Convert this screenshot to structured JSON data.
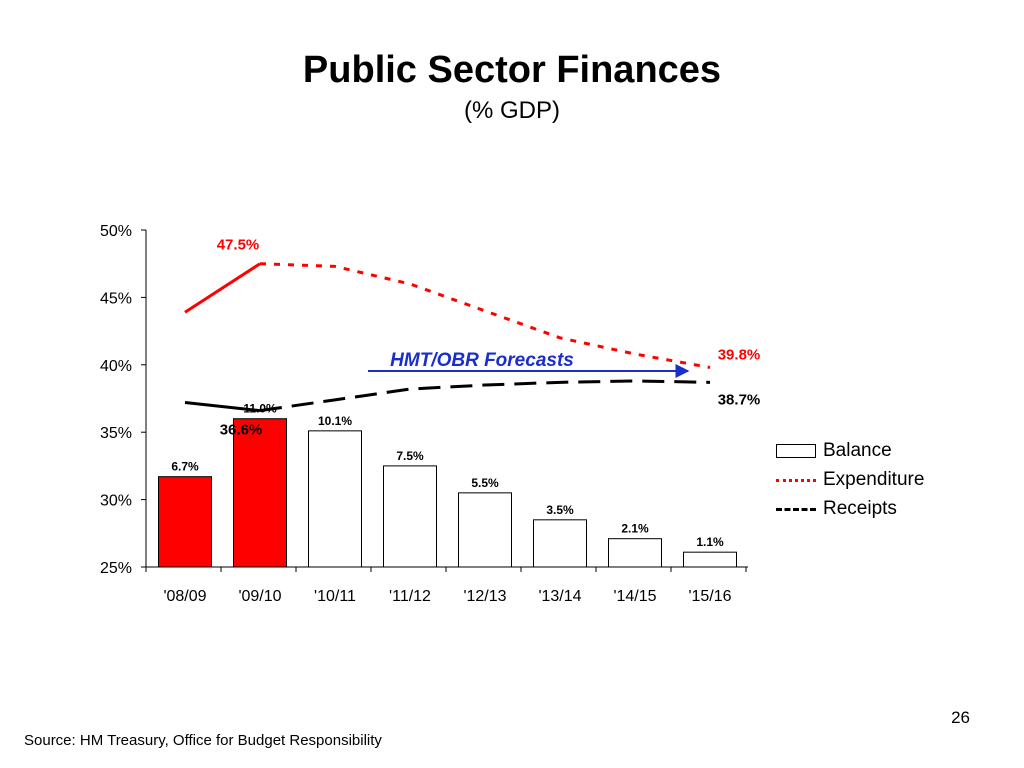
{
  "slide": {
    "title": "Public Sector Finances",
    "subtitle": "(% GDP)",
    "page_number": "26",
    "source": "Source: HM Treasury, Office for Budget Responsibility"
  },
  "chart_data": {
    "type": "bar",
    "title": "Public Sector Finances",
    "subtitle": "(% GDP)",
    "categories": [
      "'08/09",
      "'09/10",
      "'10/11",
      "'11/12",
      "'12/13",
      "'13/14",
      "'14/15",
      "'15/16"
    ],
    "y_ticks": [
      "25%",
      "30%",
      "35%",
      "40%",
      "45%",
      "50%"
    ],
    "ylim": [
      25,
      50
    ],
    "grid": false,
    "legend_position": "right",
    "series": [
      {
        "name": "Balance",
        "kind": "bar",
        "values": [
          6.7,
          11.0,
          10.1,
          7.5,
          5.5,
          3.5,
          2.1,
          1.1
        ],
        "labels": [
          "6.7%",
          "11.0%",
          "10.1%",
          "7.5%",
          "5.5%",
          "3.5%",
          "2.1%",
          "1.1%"
        ],
        "colors": [
          "#ff0000",
          "#ff0000",
          "#ffffff",
          "#ffffff",
          "#ffffff",
          "#ffffff",
          "#ffffff",
          "#ffffff"
        ]
      },
      {
        "name": "Expenditure",
        "kind": "line",
        "style_actual": "solid",
        "style_forecast": "dotted",
        "color": "#ff0000",
        "values": [
          43.9,
          47.5,
          47.3,
          46.0,
          44.0,
          42.0,
          40.8,
          39.8
        ]
      },
      {
        "name": "Receipts",
        "kind": "line",
        "style_actual": "solid",
        "style_forecast": "dashed",
        "color": "#000000",
        "values": [
          37.2,
          36.6,
          37.4,
          38.2,
          38.5,
          38.7,
          38.8,
          38.7
        ]
      }
    ],
    "annotations": [
      {
        "text": "47.5%",
        "color": "#ff0000"
      },
      {
        "text": "39.8%",
        "color": "#ff0000"
      },
      {
        "text": "36.6%",
        "color": "#000000"
      },
      {
        "text": "38.7%",
        "color": "#000000"
      },
      {
        "text": "HMT/OBR Forecasts",
        "color": "#1a2ecc"
      }
    ]
  }
}
